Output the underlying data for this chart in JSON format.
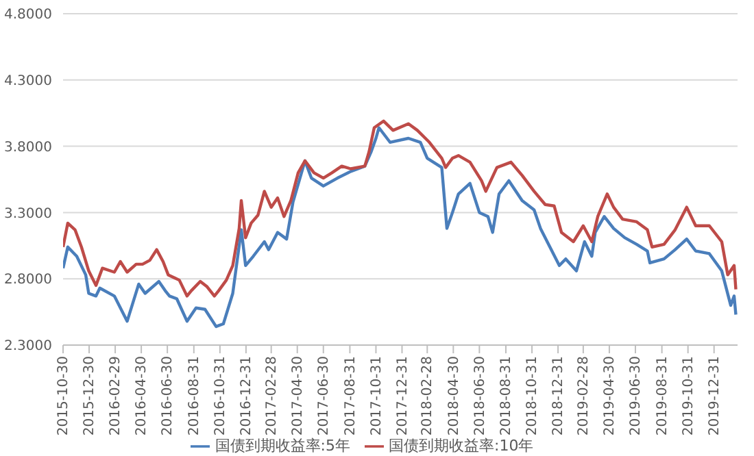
{
  "chart_data": {
    "type": "line",
    "xlim": [
      "2015-10-30",
      "2020-02-24"
    ],
    "xticks": [
      "2015-10-30",
      "2015-12-30",
      "2016-02-29",
      "2016-04-30",
      "2016-06-30",
      "2016-08-31",
      "2016-10-31",
      "2016-12-31",
      "2017-02-28",
      "2017-04-30",
      "2017-06-30",
      "2017-08-31",
      "2017-10-31",
      "2017-12-31",
      "2018-02-28",
      "2018-04-30",
      "2018-06-30",
      "2018-08-31",
      "2018-10-31",
      "2018-12-31",
      "2019-02-28",
      "2019-04-30",
      "2019-06-30",
      "2019-08-31",
      "2019-10-31",
      "2019-12-31"
    ],
    "ylim": [
      2.3,
      4.8
    ],
    "yticks": [
      {
        "value": 2.3,
        "label": "2.3000"
      },
      {
        "value": 2.8,
        "label": "2.8000"
      },
      {
        "value": 3.3,
        "label": "3.3000"
      },
      {
        "value": 3.8,
        "label": "3.8000"
      },
      {
        "value": 4.3,
        "label": "4.3000"
      },
      {
        "value": 4.8,
        "label": "4.8000"
      }
    ],
    "grid": "y",
    "legend": "bottom",
    "marker": "none",
    "line_style": "solid",
    "series": [
      {
        "name": "国债到期收益率:5年",
        "color": "#4a7ebb",
        "x": [
          "2015-10-30",
          "2015-11-10",
          "2015-12-01",
          "2015-12-22",
          "2015-12-29",
          "2016-01-15",
          "2016-01-24",
          "2016-02-27",
          "2016-03-28",
          "2016-04-24",
          "2016-05-09",
          "2016-06-10",
          "2016-06-25",
          "2016-07-05",
          "2016-07-22",
          "2016-08-15",
          "2016-09-05",
          "2016-09-26",
          "2016-10-22",
          "2016-11-08",
          "2016-11-30",
          "2016-12-20",
          "2016-12-30",
          "2017-01-17",
          "2017-02-12",
          "2017-02-22",
          "2017-03-15",
          "2017-04-05",
          "2017-04-20",
          "2017-05-18",
          "2017-06-02",
          "2017-06-30",
          "2017-08-02",
          "2017-09-02",
          "2017-10-05",
          "2017-10-20",
          "2017-10-31",
          "2017-11-07",
          "2017-12-03",
          "2018-01-15",
          "2018-02-12",
          "2018-02-28",
          "2018-04-03",
          "2018-04-15",
          "2018-04-28",
          "2018-05-12",
          "2018-06-08",
          "2018-06-30",
          "2018-07-20",
          "2018-07-31",
          "2018-08-15",
          "2018-09-07",
          "2018-10-08",
          "2018-11-05",
          "2018-11-20",
          "2018-12-12",
          "2019-01-03",
          "2019-01-18",
          "2019-02-12",
          "2019-03-03",
          "2019-03-20",
          "2019-03-28",
          "2019-04-18",
          "2019-05-10",
          "2019-06-05",
          "2019-07-03",
          "2019-07-28",
          "2019-08-03",
          "2019-09-05",
          "2019-10-01",
          "2019-10-28",
          "2019-11-18",
          "2019-12-20",
          "2020-01-18",
          "2020-02-08",
          "2020-02-16",
          "2020-02-20"
        ],
        "values": [
          2.88,
          3.04,
          2.97,
          2.83,
          2.69,
          2.67,
          2.73,
          2.67,
          2.48,
          2.76,
          2.69,
          2.78,
          2.71,
          2.67,
          2.65,
          2.48,
          2.58,
          2.57,
          2.44,
          2.46,
          2.69,
          3.17,
          2.9,
          2.97,
          3.08,
          3.02,
          3.15,
          3.1,
          3.38,
          3.69,
          3.56,
          3.5,
          3.56,
          3.61,
          3.65,
          3.76,
          3.86,
          3.94,
          3.83,
          3.86,
          3.83,
          3.71,
          3.64,
          3.18,
          3.3,
          3.44,
          3.52,
          3.3,
          3.27,
          3.15,
          3.44,
          3.54,
          3.39,
          3.32,
          3.18,
          3.04,
          2.9,
          2.95,
          2.86,
          3.08,
          2.97,
          3.15,
          3.27,
          3.18,
          3.11,
          3.06,
          3.01,
          2.92,
          2.95,
          3.02,
          3.1,
          3.01,
          2.99,
          2.86,
          2.6,
          2.67,
          2.53
        ]
      },
      {
        "name": "国债到期收益率:10年",
        "color": "#be4b48",
        "x": [
          "2015-10-30",
          "2015-11-10",
          "2015-11-27",
          "2015-12-12",
          "2015-12-29",
          "2016-01-15",
          "2016-01-30",
          "2016-02-27",
          "2016-03-12",
          "2016-03-28",
          "2016-04-18",
          "2016-05-03",
          "2016-05-20",
          "2016-06-05",
          "2016-06-20",
          "2016-07-02",
          "2016-07-28",
          "2016-08-15",
          "2016-08-25",
          "2016-09-15",
          "2016-10-01",
          "2016-10-18",
          "2016-10-28",
          "2016-11-15",
          "2016-11-30",
          "2016-12-15",
          "2016-12-20",
          "2016-12-30",
          "2017-01-12",
          "2017-01-28",
          "2017-02-12",
          "2017-02-28",
          "2017-03-15",
          "2017-03-30",
          "2017-04-15",
          "2017-05-02",
          "2017-05-18",
          "2017-06-08",
          "2017-06-30",
          "2017-07-20",
          "2017-08-12",
          "2017-09-02",
          "2017-10-05",
          "2017-10-15",
          "2017-10-27",
          "2017-11-18",
          "2017-12-10",
          "2018-01-15",
          "2018-02-05",
          "2018-03-05",
          "2018-04-03",
          "2018-04-12",
          "2018-04-28",
          "2018-05-12",
          "2018-06-08",
          "2018-07-05",
          "2018-07-15",
          "2018-08-10",
          "2018-09-12",
          "2018-10-08",
          "2018-11-05",
          "2018-12-01",
          "2018-12-22",
          "2019-01-08",
          "2019-02-05",
          "2019-02-28",
          "2019-03-20",
          "2019-04-03",
          "2019-04-25",
          "2019-05-10",
          "2019-05-31",
          "2019-07-03",
          "2019-07-28",
          "2019-08-08",
          "2019-09-05",
          "2019-10-01",
          "2019-10-28",
          "2019-11-18",
          "2019-12-20",
          "2020-01-18",
          "2020-02-01",
          "2020-02-16",
          "2020-02-20"
        ],
        "values": [
          3.04,
          3.22,
          3.17,
          3.04,
          2.86,
          2.75,
          2.88,
          2.85,
          2.93,
          2.85,
          2.91,
          2.91,
          2.94,
          3.02,
          2.93,
          2.83,
          2.79,
          2.67,
          2.71,
          2.78,
          2.74,
          2.67,
          2.71,
          2.79,
          2.9,
          3.18,
          3.39,
          3.11,
          3.22,
          3.28,
          3.46,
          3.34,
          3.41,
          3.27,
          3.39,
          3.6,
          3.69,
          3.6,
          3.56,
          3.6,
          3.65,
          3.63,
          3.65,
          3.76,
          3.94,
          3.99,
          3.92,
          3.97,
          3.92,
          3.83,
          3.71,
          3.64,
          3.71,
          3.73,
          3.68,
          3.54,
          3.46,
          3.64,
          3.68,
          3.58,
          3.46,
          3.36,
          3.35,
          3.15,
          3.08,
          3.2,
          3.08,
          3.27,
          3.44,
          3.34,
          3.25,
          3.23,
          3.17,
          3.04,
          3.06,
          3.17,
          3.34,
          3.2,
          3.2,
          3.08,
          2.83,
          2.9,
          2.72
        ]
      }
    ]
  }
}
